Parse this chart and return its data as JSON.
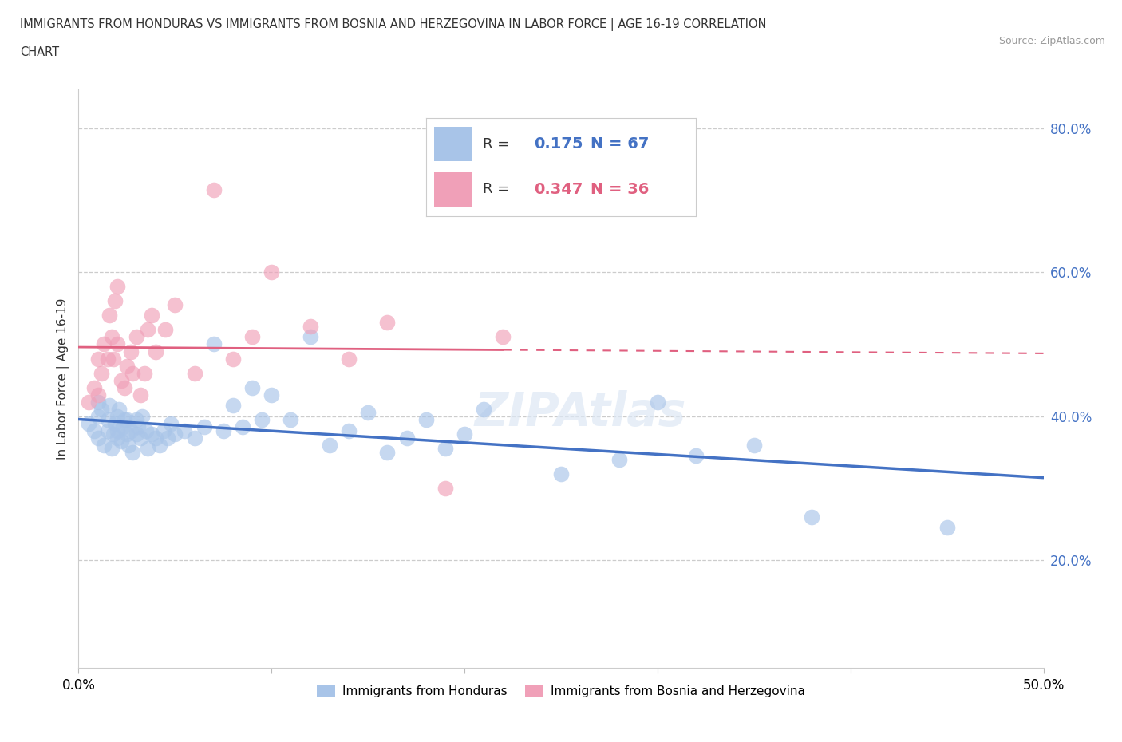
{
  "title_line1": "IMMIGRANTS FROM HONDURAS VS IMMIGRANTS FROM BOSNIA AND HERZEGOVINA IN LABOR FORCE | AGE 16-19 CORRELATION",
  "title_line2": "CHART",
  "source": "Source: ZipAtlas.com",
  "ylabel": "In Labor Force | Age 16-19",
  "xmin": 0.0,
  "xmax": 0.5,
  "ymin": 0.05,
  "ymax": 0.855,
  "color_honduras": "#a8c4e8",
  "color_bosnia": "#f0a0b8",
  "color_line_honduras": "#4472c4",
  "color_line_bosnia": "#e06080",
  "R_honduras": 0.175,
  "N_honduras": 67,
  "R_bosnia": 0.347,
  "N_bosnia": 36,
  "honduras_x": [
    0.005,
    0.008,
    0.01,
    0.01,
    0.01,
    0.012,
    0.013,
    0.015,
    0.015,
    0.016,
    0.017,
    0.018,
    0.019,
    0.02,
    0.02,
    0.02,
    0.021,
    0.022,
    0.023,
    0.024,
    0.025,
    0.025,
    0.026,
    0.027,
    0.028,
    0.03,
    0.03,
    0.031,
    0.032,
    0.033,
    0.035,
    0.036,
    0.038,
    0.04,
    0.042,
    0.044,
    0.046,
    0.048,
    0.05,
    0.055,
    0.06,
    0.065,
    0.07,
    0.075,
    0.08,
    0.085,
    0.09,
    0.095,
    0.1,
    0.11,
    0.12,
    0.13,
    0.14,
    0.15,
    0.16,
    0.17,
    0.18,
    0.19,
    0.2,
    0.21,
    0.25,
    0.28,
    0.3,
    0.32,
    0.35,
    0.38,
    0.45
  ],
  "honduras_y": [
    0.39,
    0.38,
    0.42,
    0.37,
    0.4,
    0.41,
    0.36,
    0.38,
    0.395,
    0.415,
    0.355,
    0.375,
    0.39,
    0.38,
    0.4,
    0.37,
    0.41,
    0.365,
    0.385,
    0.395,
    0.375,
    0.395,
    0.36,
    0.38,
    0.35,
    0.375,
    0.395,
    0.385,
    0.37,
    0.4,
    0.38,
    0.355,
    0.375,
    0.37,
    0.36,
    0.38,
    0.37,
    0.39,
    0.375,
    0.38,
    0.37,
    0.385,
    0.5,
    0.38,
    0.415,
    0.385,
    0.44,
    0.395,
    0.43,
    0.395,
    0.51,
    0.36,
    0.38,
    0.405,
    0.35,
    0.37,
    0.395,
    0.355,
    0.375,
    0.41,
    0.32,
    0.34,
    0.42,
    0.345,
    0.36,
    0.26,
    0.245
  ],
  "bosnia_x": [
    0.005,
    0.008,
    0.01,
    0.01,
    0.012,
    0.013,
    0.015,
    0.016,
    0.017,
    0.018,
    0.019,
    0.02,
    0.02,
    0.022,
    0.024,
    0.025,
    0.027,
    0.028,
    0.03,
    0.032,
    0.034,
    0.036,
    0.038,
    0.04,
    0.045,
    0.05,
    0.06,
    0.07,
    0.08,
    0.09,
    0.1,
    0.12,
    0.14,
    0.16,
    0.19,
    0.22
  ],
  "bosnia_y": [
    0.42,
    0.44,
    0.43,
    0.48,
    0.46,
    0.5,
    0.48,
    0.54,
    0.51,
    0.48,
    0.56,
    0.58,
    0.5,
    0.45,
    0.44,
    0.47,
    0.49,
    0.46,
    0.51,
    0.43,
    0.46,
    0.52,
    0.54,
    0.49,
    0.52,
    0.555,
    0.46,
    0.715,
    0.48,
    0.51,
    0.6,
    0.525,
    0.48,
    0.53,
    0.3,
    0.51
  ]
}
